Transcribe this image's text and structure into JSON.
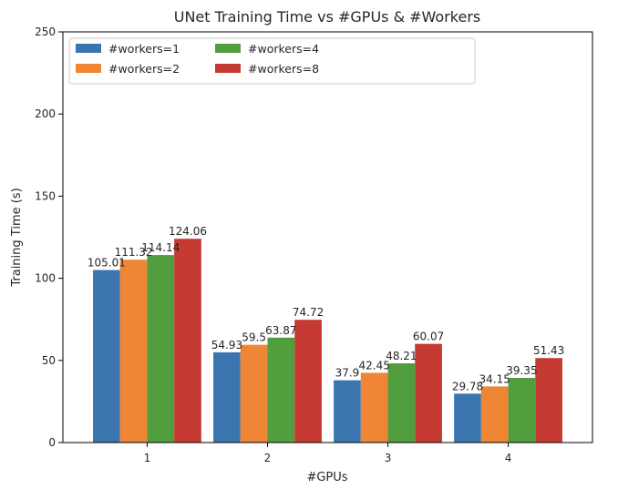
{
  "chart_data": {
    "type": "bar",
    "title": "UNet Training Time vs #GPUs & #Workers",
    "xlabel": "#GPUs",
    "ylabel": "Training Time (s)",
    "categories": [
      "1",
      "2",
      "3",
      "4"
    ],
    "ylim": [
      0,
      250
    ],
    "yticks": [
      0,
      50,
      100,
      150,
      200,
      250
    ],
    "legend_position": "top-left",
    "legend_columns": 3,
    "series": [
      {
        "name": "#workers=1",
        "color": "#3a75b0",
        "values": [
          105.01,
          54.93,
          37.9,
          29.78
        ],
        "labels": [
          "105.01",
          "54.93",
          "37.9",
          "29.78"
        ]
      },
      {
        "name": "#workers=2",
        "color": "#ef8636",
        "values": [
          111.32,
          59.5,
          42.45,
          34.15
        ],
        "labels": [
          "111.32",
          "59.5",
          "42.45",
          "34.15"
        ]
      },
      {
        "name": "#workers=4",
        "color": "#519e3e",
        "values": [
          114.14,
          63.87,
          48.21,
          39.35
        ],
        "labels": [
          "114.14",
          "63.87",
          "48.21",
          "39.35"
        ]
      },
      {
        "name": "#workers=8",
        "color": "#c53a32",
        "values": [
          124.06,
          74.72,
          60.07,
          51.43
        ],
        "labels": [
          "124.06",
          "74.72",
          "60.07",
          "51.43"
        ]
      }
    ]
  }
}
